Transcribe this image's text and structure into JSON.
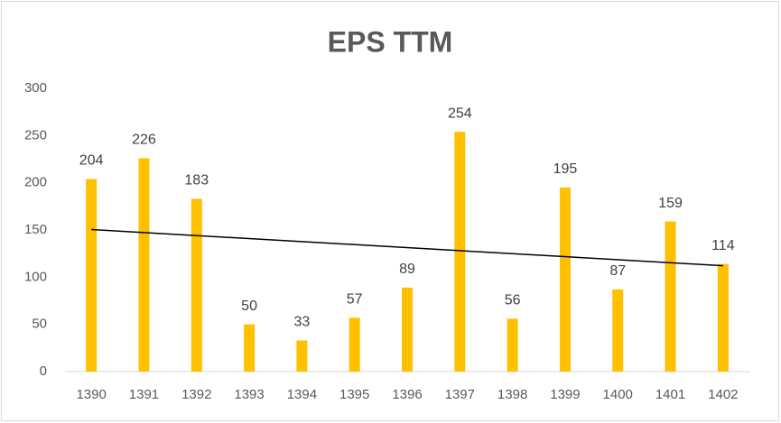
{
  "chart_data": {
    "type": "bar",
    "title": "EPS TTM",
    "categories": [
      "1390",
      "1391",
      "1392",
      "1393",
      "1394",
      "1395",
      "1396",
      "1397",
      "1398",
      "1399",
      "1400",
      "1401",
      "1402"
    ],
    "values": [
      204,
      226,
      183,
      50,
      33,
      57,
      89,
      254,
      56,
      195,
      87,
      159,
      114
    ],
    "color": "#ffc000",
    "ylim": [
      0,
      300
    ],
    "yticks": [
      0,
      50,
      100,
      150,
      200,
      250,
      300
    ],
    "grid": false,
    "data_labels": true,
    "trendline": "linear"
  }
}
